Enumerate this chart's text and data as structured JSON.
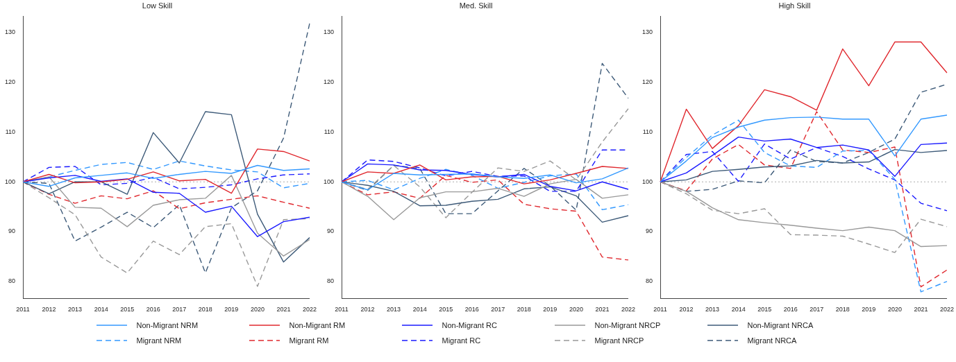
{
  "chart_data": [
    {
      "type": "line",
      "title": "Low Skill",
      "categories": [
        "2011",
        "2012",
        "2013",
        "2014",
        "2015",
        "2016",
        "2017",
        "2018",
        "2019",
        "2020",
        "2021",
        "2022"
      ],
      "ylim": [
        76.6,
        133.3
      ],
      "yticks": [
        80,
        90,
        100,
        110,
        120,
        130
      ],
      "grid": false,
      "legend": "bottom",
      "marker": "none",
      "ref_lines": [
        {
          "axis": "y",
          "value": 100,
          "color": "#aaaaaa",
          "line_style": "dotted"
        }
      ],
      "series": [
        {
          "name": "Non-Migrant NRM",
          "color": "#3399ff",
          "line_style": "solid",
          "values": [
            100,
            99.1,
            100.8,
            101.3,
            101.8,
            100.7,
            101.5,
            102.1,
            101.7,
            103.3,
            102.3,
            102.6
          ]
        },
        {
          "name": "Non-Migrant RM",
          "color": "#e0282e",
          "line_style": "solid",
          "values": [
            100,
            101.5,
            99.8,
            100,
            100.5,
            102,
            100.2,
            100.5,
            97.7,
            106.6,
            106.1,
            104.2
          ]
        },
        {
          "name": "Non-Migrant RC",
          "color": "#1a1aff",
          "line_style": "solid",
          "values": [
            100,
            100.8,
            101.3,
            100.1,
            100.6,
            97.9,
            97.7,
            93.9,
            95.1,
            89,
            92,
            92.9
          ]
        },
        {
          "name": "Non-Migrant NRCP",
          "color": "#999999",
          "line_style": "solid",
          "values": [
            100,
            101,
            94.9,
            94.7,
            91,
            95.3,
            96.4,
            96.7,
            101.3,
            89.7,
            85.1,
            88.4
          ]
        },
        {
          "name": "Non-Migrant NRCA",
          "color": "#3d5a78",
          "line_style": "solid",
          "values": [
            100,
            97.6,
            100,
            100,
            97.5,
            109.9,
            103.8,
            114.1,
            113.5,
            93.5,
            83.9,
            88.8
          ]
        },
        {
          "name": "Migrant NRM",
          "color": "#3399ff",
          "line_style": "dashed",
          "values": [
            100,
            101,
            102.3,
            103.5,
            103.9,
            102.5,
            104.2,
            103.2,
            102.4,
            102,
            98.8,
            99.7
          ]
        },
        {
          "name": "Migrant RM",
          "color": "#e0282e",
          "line_style": "dashed",
          "values": [
            100,
            97.5,
            95.7,
            97.2,
            96.6,
            98.2,
            94.6,
            95.8,
            96.5,
            97.2,
            95.9,
            94.7
          ]
        },
        {
          "name": "Migrant RC",
          "color": "#1a1aff",
          "line_style": "dashed",
          "values": [
            100,
            102.9,
            103.1,
            99.4,
            99.7,
            100.9,
            98.6,
            98.9,
            99.4,
            100.6,
            101.4,
            101.6
          ]
        },
        {
          "name": "Migrant NRCP",
          "color": "#999999",
          "line_style": "dashed",
          "values": [
            100,
            96.8,
            93.4,
            84.9,
            81.7,
            88.1,
            85.4,
            91,
            91.6,
            79,
            92.4,
            92.6
          ]
        },
        {
          "name": "Migrant NRCA",
          "color": "#3d5a78",
          "line_style": "dashed",
          "values": [
            100,
            99.7,
            88.1,
            90.9,
            93.9,
            90.8,
            95.4,
            81.7,
            94.8,
            98.2,
            108.8,
            131.8
          ]
        }
      ]
    },
    {
      "type": "line",
      "title": "Med. Skill",
      "categories": [
        "2011",
        "2012",
        "2013",
        "2014",
        "2015",
        "2016",
        "2017",
        "2018",
        "2019",
        "2020",
        "2021",
        "2022"
      ],
      "ylim": [
        76.6,
        133.3
      ],
      "yticks": [
        80,
        90,
        100,
        110,
        120,
        130
      ],
      "grid": false,
      "marker": "none",
      "ref_lines": [
        {
          "axis": "y",
          "value": 100,
          "color": "#aaaaaa",
          "line_style": "dotted"
        }
      ],
      "series": [
        {
          "color": "#3399ff",
          "line_style": "solid",
          "values": [
            100,
            98.4,
            101.7,
            101.4,
            101.5,
            101.6,
            101,
            100.7,
            101.4,
            99.8,
            100.6,
            102.8
          ]
        },
        {
          "color": "#e0282e",
          "line_style": "solid",
          "values": [
            100,
            102,
            101.7,
            103.4,
            100.4,
            101,
            101.1,
            99.6,
            100.4,
            101.7,
            103.1,
            102.7
          ]
        },
        {
          "color": "#1a1aff",
          "line_style": "solid",
          "values": [
            100,
            103.6,
            103.4,
            102.4,
            102.3,
            101.5,
            101,
            101.5,
            99.1,
            98.2,
            100,
            98.5
          ]
        },
        {
          "color": "#999999",
          "line_style": "solid",
          "values": [
            100,
            97.1,
            92.4,
            96.8,
            98,
            98,
            98.7,
            97.1,
            99.6,
            100.5,
            96.7,
            97.4
          ]
        },
        {
          "color": "#3d5a78",
          "line_style": "solid",
          "values": [
            100,
            99.3,
            98.1,
            95.2,
            95.3,
            96.1,
            96.5,
            98.6,
            99,
            97.2,
            91.9,
            93.2
          ]
        },
        {
          "color": "#3399ff",
          "line_style": "dashed",
          "values": [
            100,
            100.3,
            98.4,
            100.7,
            102.5,
            101.3,
            98.7,
            99.9,
            101.2,
            101.6,
            94.4,
            95.4
          ]
        },
        {
          "color": "#e0282e",
          "line_style": "dashed",
          "values": [
            100,
            97.4,
            98,
            96.7,
            101.3,
            99.9,
            100.4,
            95.5,
            94.6,
            94.1,
            84.9,
            84.3
          ]
        },
        {
          "color": "#1a1aff",
          "line_style": "dashed",
          "values": [
            100,
            104.4,
            104.1,
            102.8,
            101.2,
            102.1,
            101.1,
            101.2,
            98.1,
            98.1,
            106.4,
            106.4
          ]
        },
        {
          "color": "#999999",
          "line_style": "dashed",
          "values": [
            100,
            98.5,
            103.3,
            99,
            92.8,
            97.9,
            102.8,
            102.1,
            104.2,
            100.4,
            108,
            114.7
          ]
        },
        {
          "color": "#3d5a78",
          "line_style": "dashed",
          "values": [
            100,
            98.3,
            103.3,
            102.7,
            93.6,
            93.6,
            98.2,
            102.7,
            99.2,
            94.3,
            123.8,
            116.8
          ]
        }
      ]
    },
    {
      "type": "line",
      "title": "High Skill",
      "categories": [
        "2011",
        "2012",
        "2013",
        "2014",
        "2015",
        "2016",
        "2017",
        "2018",
        "2019",
        "2020",
        "2021",
        "2022"
      ],
      "ylim": [
        76.6,
        133.3
      ],
      "yticks": [
        80,
        90,
        100,
        110,
        120,
        130
      ],
      "grid": false,
      "marker": "none",
      "ref_lines": [
        {
          "axis": "y",
          "value": 100,
          "color": "#aaaaaa",
          "line_style": "dotted"
        }
      ],
      "series": [
        {
          "color": "#3399ff",
          "line_style": "solid",
          "values": [
            100,
            104.2,
            108.9,
            111,
            112.4,
            112.9,
            113,
            112.6,
            112.6,
            105.2,
            112.6,
            113.4
          ]
        },
        {
          "color": "#e0282e",
          "line_style": "solid",
          "values": [
            100,
            114.6,
            106.7,
            111.3,
            118.5,
            117.1,
            114.4,
            126.7,
            119.3,
            128.1,
            128.1,
            121.9
          ]
        },
        {
          "color": "#1a1aff",
          "line_style": "solid",
          "values": [
            100,
            101.8,
            105.3,
            109,
            108.2,
            108.6,
            106.9,
            107.4,
            106.4,
            101.1,
            107.5,
            107.8
          ]
        },
        {
          "color": "#999999",
          "line_style": "solid",
          "values": [
            100,
            98.1,
            94.8,
            92.4,
            91.8,
            91.3,
            90.7,
            90.2,
            90.9,
            90.2,
            87,
            87.2
          ]
        },
        {
          "color": "#3d5a78",
          "line_style": "solid",
          "values": [
            100,
            100.4,
            102.1,
            102.5,
            103,
            103.2,
            104.3,
            103.8,
            104,
            106.5,
            105.9,
            106.3
          ]
        },
        {
          "color": "#3399ff",
          "line_style": "dashed",
          "values": [
            100,
            104.9,
            109.4,
            112.4,
            105.9,
            103.2,
            102.9,
            106.2,
            106.3,
            100.5,
            77.9,
            80
          ]
        },
        {
          "color": "#e0282e",
          "line_style": "dashed",
          "values": [
            100,
            98.2,
            104.6,
            107.5,
            103.4,
            102.7,
            114.1,
            106.4,
            105.9,
            107,
            78.9,
            82.3
          ]
        },
        {
          "color": "#1a1aff",
          "line_style": "dashed",
          "values": [
            100,
            105.5,
            106.1,
            100.1,
            107.6,
            104.6,
            106.9,
            105.1,
            102.6,
            100.4,
            95.7,
            94.2
          ]
        },
        {
          "color": "#999999",
          "line_style": "dashed",
          "values": [
            100,
            97.6,
            94.3,
            93.6,
            94.6,
            89.4,
            89.3,
            89.1,
            87.5,
            85.8,
            92.5,
            91
          ]
        },
        {
          "color": "#3d5a78",
          "line_style": "dashed",
          "values": [
            100,
            98.1,
            98.5,
            100.2,
            99.8,
            106.4,
            104.1,
            103.8,
            105.9,
            108.6,
            118,
            119.6
          ]
        }
      ]
    }
  ]
}
